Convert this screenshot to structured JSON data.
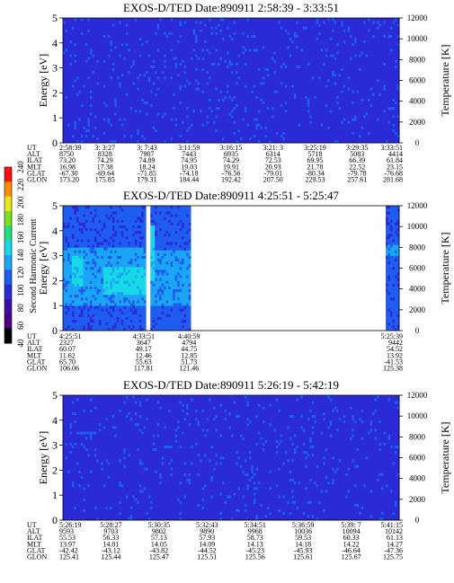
{
  "colorbar": {
    "title": "Second Harmonic Current",
    "ticks": [
      "40",
      "60",
      "80",
      "100",
      "120",
      "140",
      "160",
      "180",
      "200",
      "220",
      "240"
    ],
    "colors": [
      "#000000",
      "#4b0082",
      "#3b0ea8",
      "#2a2ad6",
      "#1f5cf0",
      "#1aa5f5",
      "#17d9e8",
      "#20e080",
      "#7ee020",
      "#e8e81a",
      "#ff8c00",
      "#ff1010"
    ]
  },
  "chart_data": [
    {
      "type": "heatmap",
      "title": "EXOS-D/TED   Date:890911  2:58:39 - 3:33:51",
      "ylabel": "Energy [eV]",
      "y2label": "Temperature [K]",
      "ylim": [
        0,
        5
      ],
      "yticks": [
        "0",
        "1",
        "2",
        "3",
        "4",
        "5"
      ],
      "y2lim": [
        0,
        12000
      ],
      "y2ticks": [
        "0",
        "2000",
        "4000",
        "6000",
        "8000",
        "10000",
        "12000"
      ],
      "coverage": [
        [
          0,
          1
        ]
      ],
      "base_value": 100,
      "features": [],
      "ephemeris": {
        "labels": [
          "UT",
          "ALT",
          "ILAT",
          "MLT",
          "GLAT",
          "GLON"
        ],
        "columns": [
          [
            "2:58:39",
            "8750",
            "73.20",
            "16.98",
            "-67.30",
            "173.20"
          ],
          [
            "3: 3:27",
            "8328",
            "74.29",
            "17.38",
            "-69.64",
            "175.85"
          ],
          [
            "3: 7:43",
            "7907",
            "74.89",
            "18.24",
            "-71.85",
            "179.31"
          ],
          [
            "3:11:59",
            "7443",
            "74.95",
            "19.03",
            "-74.18",
            "184.44"
          ],
          [
            "3:16:15",
            "6935",
            "74.29",
            "19.91",
            "-76.56",
            "192.42"
          ],
          [
            "3:21: 3",
            "6314",
            "72.53",
            "20.93",
            "-79.01",
            "207.50"
          ],
          [
            "3:25:19",
            "5718",
            "69.95",
            "21.78",
            "-80.34",
            "229.53"
          ],
          [
            "3:29:35",
            "5083",
            "66.39",
            "22.52",
            "-79.78",
            "257.61"
          ],
          [
            "3:33:51",
            "4414",
            "61.84",
            "23.15",
            "-76.68",
            "281.68"
          ]
        ]
      }
    },
    {
      "type": "heatmap",
      "title": "EXOS-D/TED   Date:890911  4:25:51 - 5:25:47",
      "ylabel": "Energy [eV]",
      "y2label": "Temperature [K]",
      "ylim": [
        0,
        5
      ],
      "yticks": [
        "0",
        "1",
        "2",
        "3",
        "4",
        "5"
      ],
      "y2lim": [
        0,
        12000
      ],
      "y2ticks": [
        "0",
        "2000",
        "4000",
        "6000",
        "8000",
        "10000",
        "12000"
      ],
      "coverage": [
        [
          0,
          0.245
        ],
        [
          0.262,
          0.377
        ],
        [
          0.962,
          1
        ]
      ],
      "base_value": 105,
      "features": [
        {
          "x": [
            0,
            0.245
          ],
          "y": [
            1.0,
            3.3
          ],
          "value": 125
        },
        {
          "x": [
            0.03,
            0.06
          ],
          "y": [
            1.8,
            3.0
          ],
          "value": 140
        },
        {
          "x": [
            0.12,
            0.245
          ],
          "y": [
            1.5,
            2.6
          ],
          "value": 140
        },
        {
          "x": [
            0.262,
            0.377
          ],
          "y": [
            1.0,
            3.2
          ],
          "value": 125
        },
        {
          "x": [
            0.262,
            0.275
          ],
          "y": [
            2.0,
            4.2
          ],
          "value": 145
        },
        {
          "x": [
            0.962,
            1
          ],
          "y": [
            3.0,
            3.4
          ],
          "value": 122
        }
      ],
      "ephemeris": {
        "labels": [
          "UT",
          "ALT",
          "ILAT",
          "MLT",
          "GLAT",
          "GLON"
        ],
        "columns": [
          [
            "4:25:51",
            "2327",
            "60.07",
            "11.62",
            "65.70",
            "106.06"
          ],
          [
            "4:33:51",
            "3647",
            "49.17",
            "12.46",
            "55.63",
            "117.81"
          ],
          [
            "4:40:59",
            "4794",
            "44.75",
            "12.85",
            "51.73",
            "121.46"
          ],
          [
            "5:25:39",
            "9442",
            "54.52",
            "13.92",
            "-41.53",
            "125.38"
          ]
        ]
      }
    },
    {
      "type": "heatmap",
      "title": "EXOS-D/TED   Date:890911  5:26:19 - 5:42:19",
      "ylabel": "Energy [eV]",
      "y2label": "Temperature [K]",
      "ylim": [
        0,
        5
      ],
      "yticks": [
        "0",
        "1",
        "2",
        "3",
        "4",
        "5"
      ],
      "y2lim": [
        0,
        12000
      ],
      "y2ticks": [
        "0",
        "2000",
        "4000",
        "6000",
        "8000",
        "10000",
        "12000"
      ],
      "coverage": [
        [
          0,
          1
        ]
      ],
      "base_value": 100,
      "features": [
        {
          "x": [
            0.04,
            0.1
          ],
          "y": [
            3.45,
            3.6
          ],
          "value": 120
        }
      ],
      "ephemeris": {
        "labels": [
          "UT",
          "ALT",
          "ILAT",
          "MLT",
          "GLAT",
          "GLON"
        ],
        "columns": [
          [
            "5:26:19",
            "9593",
            "55.53",
            "13.97",
            "-42.42",
            "125.41"
          ],
          [
            "5:28:27",
            "9703",
            "56.33",
            "14.01",
            "-43.12",
            "125.44"
          ],
          [
            "5:30:35",
            "9802",
            "57.13",
            "14.05",
            "-43.82",
            "125.47"
          ],
          [
            "5:32:43",
            "9890",
            "57.93",
            "14.09",
            "-44.52",
            "125.51"
          ],
          [
            "5:34:51",
            "9968",
            "58.73",
            "14.13",
            "-45.23",
            "125.56"
          ],
          [
            "5:36:59",
            "10036",
            "59.53",
            "14.18",
            "-45.93",
            "125.61"
          ],
          [
            "5:39: 7",
            "10094",
            "60.33",
            "14.22",
            "-46.64",
            "125.67"
          ],
          [
            "5:41:15",
            "10142",
            "61.13",
            "14.27",
            "-47.36",
            "125.75"
          ]
        ]
      }
    }
  ]
}
